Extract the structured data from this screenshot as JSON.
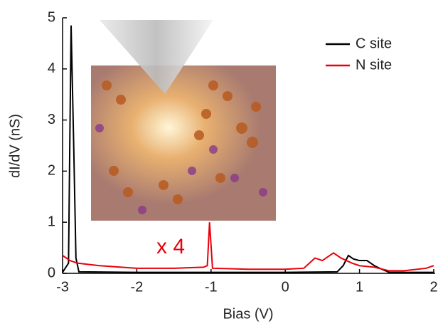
{
  "chart_data": {
    "type": "line",
    "x_label": "Bias (V)",
    "y_label": "dI/dV (nS)",
    "annotation": "x 4",
    "xlim": [
      -3,
      2
    ],
    "xticks": [
      -3,
      -2,
      -1,
      0,
      1,
      2
    ],
    "ylim": [
      0,
      5
    ],
    "yticks": [
      0,
      1,
      2,
      3,
      4,
      5
    ],
    "legend": "upper right",
    "series": [
      {
        "name": "C site",
        "color": "#000000",
        "x": [
          -3,
          -2.92,
          -2.885,
          -2.85,
          -2.82,
          -2.78,
          -2,
          -1,
          0,
          0.7,
          0.78,
          0.85,
          0.92,
          1.0,
          1.1,
          1.2,
          1.3,
          1.4,
          1.6,
          2
        ],
        "values": [
          0.02,
          0.2,
          4.85,
          2.5,
          0.3,
          0.03,
          0.02,
          0.02,
          0.02,
          0.03,
          0.15,
          0.35,
          0.28,
          0.25,
          0.25,
          0.15,
          0.08,
          0.02,
          0.02,
          0.02
        ]
      },
      {
        "name": "N site",
        "color": "#e8000b",
        "x": [
          -3,
          -2.9,
          -2.8,
          -2.5,
          -2,
          -1.5,
          -1.1,
          -1.05,
          -1.02,
          -0.98,
          -0.5,
          0,
          0.25,
          0.4,
          0.5,
          0.65,
          0.75,
          0.9,
          1.0,
          1.2,
          1.4,
          1.6,
          1.9,
          2
        ],
        "values": [
          0.35,
          0.25,
          0.2,
          0.15,
          0.1,
          0.1,
          0.12,
          0.15,
          1.0,
          0.1,
          0.08,
          0.08,
          0.1,
          0.3,
          0.25,
          0.4,
          0.3,
          0.2,
          0.15,
          0.12,
          0.05,
          0.05,
          0.1,
          0.15
        ]
      }
    ]
  }
}
